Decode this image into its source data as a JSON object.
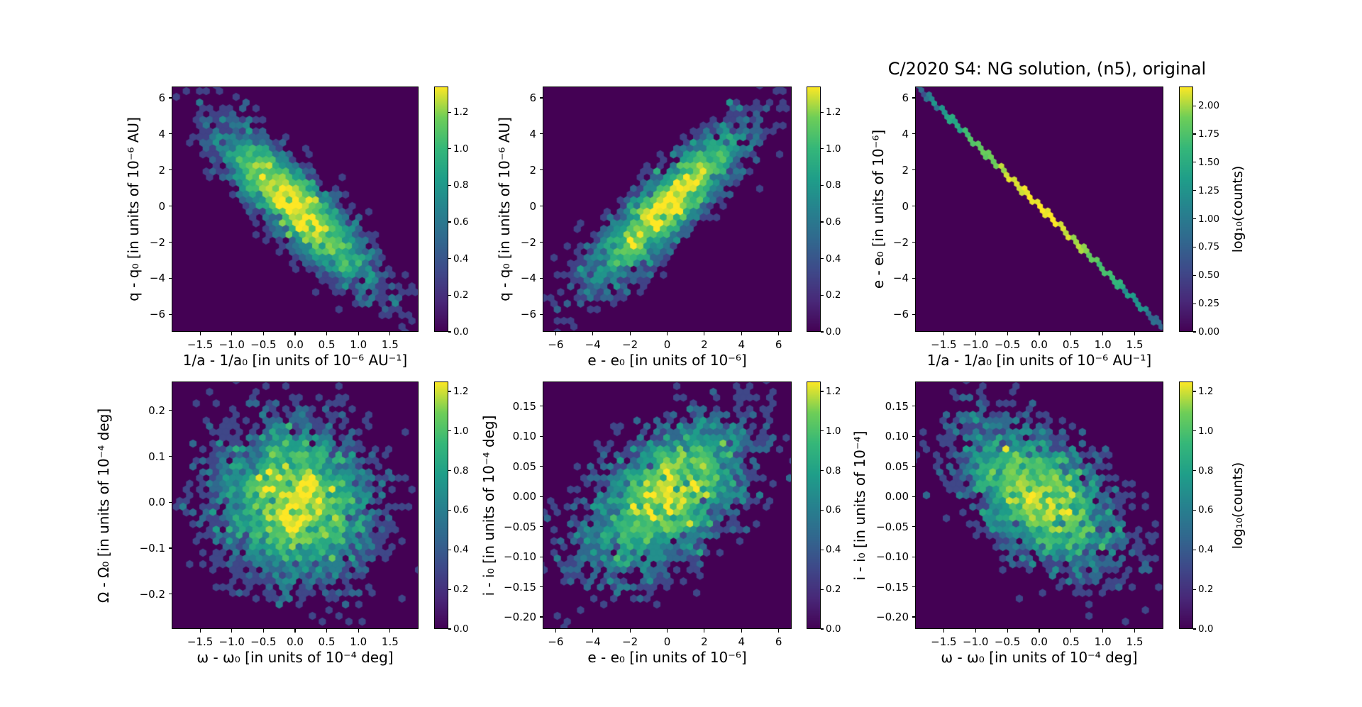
{
  "figure": {
    "title": "C/2020 S4: NG solution, (n5), original",
    "background": "#ffffff",
    "panel_background": "#440154",
    "colormap": "viridis",
    "colormap_stops": [
      [
        0.0,
        "#440154"
      ],
      [
        0.125,
        "#482878"
      ],
      [
        0.25,
        "#3e4989"
      ],
      [
        0.375,
        "#31688e"
      ],
      [
        0.5,
        "#26828e"
      ],
      [
        0.625,
        "#1f9e89"
      ],
      [
        0.75,
        "#35b779"
      ],
      [
        0.875,
        "#6ece58"
      ],
      [
        1.0,
        "#fde725"
      ]
    ],
    "text_color": "#000000"
  },
  "chart_data": [
    {
      "id": "q-vs-inverse-a",
      "type": "hexbin",
      "xlabel": "1/a - 1/a₀ [in units of 10⁻⁶ AU⁻¹]",
      "ylabel": "q - q₀ [in units of 10⁻⁶ AU]",
      "xlim": [
        -1.95,
        1.95
      ],
      "ylim": [
        -6.97,
        6.63
      ],
      "xticks": {
        "values": [
          -1.5,
          -1.0,
          -0.5,
          0.0,
          0.5,
          1.0,
          1.5
        ],
        "labels": [
          "−1.5",
          "−1.0",
          "−0.5",
          "0.0",
          "0.5",
          "1.0",
          "1.5"
        ]
      },
      "yticks": {
        "values": [
          6,
          4,
          2,
          0,
          -2,
          -4,
          -6
        ],
        "labels": [
          "6",
          "4",
          "2",
          "0",
          "−2",
          "−4",
          "−6"
        ]
      },
      "colorbar": {
        "vmax": 1.34,
        "tick_values": [
          0.0,
          0.2,
          0.4,
          0.6,
          0.8,
          1.0,
          1.2
        ],
        "tick_labels": [
          "0.0",
          "0.2",
          "0.4",
          "0.6",
          "0.8",
          "1.0",
          "1.2"
        ],
        "label": null
      },
      "distribution": {
        "kind": "gaussian",
        "center": [
          0,
          0
        ],
        "sigma_x": 0.62,
        "sigma_y": 2.2,
        "rho": -0.87,
        "peak_count": 22,
        "hex_radius_px": 5.4,
        "seed": 101
      }
    },
    {
      "id": "q-vs-e",
      "type": "hexbin",
      "xlabel": "e - e₀ [in units of 10⁻⁶]",
      "ylabel": "q - q₀ [in units of 10⁻⁶ AU]",
      "xlim": [
        -6.7,
        6.7
      ],
      "ylim": [
        -6.97,
        6.63
      ],
      "xticks": {
        "values": [
          -6,
          -4,
          -2,
          0,
          2,
          4,
          6
        ],
        "labels": [
          "−6",
          "−4",
          "−2",
          "0",
          "2",
          "4",
          "6"
        ]
      },
      "yticks": {
        "values": [
          6,
          4,
          2,
          0,
          -2,
          -4,
          -6
        ],
        "labels": [
          "6",
          "4",
          "2",
          "0",
          "−2",
          "−4",
          "−6"
        ]
      },
      "colorbar": {
        "vmax": 1.34,
        "tick_values": [
          0.0,
          0.2,
          0.4,
          0.6,
          0.8,
          1.0,
          1.2
        ],
        "tick_labels": [
          "0.0",
          "0.2",
          "0.4",
          "0.6",
          "0.8",
          "1.0",
          "1.2"
        ],
        "label": null
      },
      "distribution": {
        "kind": "gaussian",
        "center": [
          0,
          0
        ],
        "sigma_x": 2.15,
        "sigma_y": 2.2,
        "rho": 0.87,
        "peak_count": 22,
        "hex_radius_px": 5.4,
        "seed": 202
      }
    },
    {
      "id": "e-vs-inverse-a",
      "type": "hexbin",
      "xlabel": "1/a - 1/a₀ [in units of 10⁻⁶ AU⁻¹]",
      "ylabel": "e - e₀ [in units of 10⁻⁶]",
      "xlim": [
        -1.95,
        1.95
      ],
      "ylim": [
        -6.97,
        6.63
      ],
      "xticks": {
        "values": [
          -1.5,
          -1.0,
          -0.5,
          0.0,
          0.5,
          1.0,
          1.5
        ],
        "labels": [
          "−1.5",
          "−1.0",
          "−0.5",
          "0.0",
          "0.5",
          "1.0",
          "1.5"
        ]
      },
      "yticks": {
        "values": [
          6,
          4,
          2,
          0,
          -2,
          -4,
          -6
        ],
        "labels": [
          "6",
          "4",
          "2",
          "0",
          "−2",
          "−4",
          "−6"
        ]
      },
      "colorbar": {
        "vmax": 2.17,
        "tick_values": [
          0.0,
          0.25,
          0.5,
          0.75,
          1.0,
          1.25,
          1.5,
          1.75,
          2.0
        ],
        "tick_labels": [
          "0.00",
          "0.25",
          "0.50",
          "0.75",
          "1.00",
          "1.25",
          "1.50",
          "1.75",
          "2.00"
        ],
        "label": "log₁₀(counts)"
      },
      "distribution": {
        "kind": "line",
        "x_from": -1.93,
        "y_from": 6.7,
        "x_to": 1.93,
        "y_to": -6.7,
        "sigma_t": 0.72,
        "peak_count": 145,
        "hex_radius_px": 4.2,
        "seed": 303
      }
    },
    {
      "id": "Omega-vs-omega",
      "type": "hexbin",
      "xlabel": "ω - ω₀ [in units of 10⁻⁴ deg]",
      "ylabel": "Ω - Ω₀ [in units of 10⁻⁴ deg]",
      "xlim": [
        -1.95,
        1.95
      ],
      "ylim": [
        -0.276,
        0.263
      ],
      "xticks": {
        "values": [
          -1.5,
          -1.0,
          -0.5,
          0.0,
          0.5,
          1.0,
          1.5
        ],
        "labels": [
          "−1.5",
          "−1.0",
          "−0.5",
          "0.0",
          "0.5",
          "1.0",
          "1.5"
        ]
      },
      "yticks": {
        "values": [
          0.2,
          0.1,
          0.0,
          -0.1,
          -0.2
        ],
        "labels": [
          "0.2",
          "0.1",
          "0.0",
          "−0.1",
          "−0.2"
        ]
      },
      "colorbar": {
        "vmax": 1.25,
        "tick_values": [
          0.0,
          0.2,
          0.4,
          0.6,
          0.8,
          1.0,
          1.2
        ],
        "tick_labels": [
          "0.0",
          "0.2",
          "0.4",
          "0.6",
          "0.8",
          "1.0",
          "1.2"
        ],
        "label": null
      },
      "distribution": {
        "kind": "gaussian",
        "center": [
          0,
          0
        ],
        "sigma_x": 0.6,
        "sigma_y": 0.085,
        "rho": -0.08,
        "peak_count": 15,
        "hex_radius_px": 5.4,
        "seed": 404
      }
    },
    {
      "id": "i-vs-e",
      "type": "hexbin",
      "xlabel": "e - e₀ [in units of 10⁻⁶]",
      "ylabel": "i - i₀ [in units of 10⁻⁴ deg]",
      "xlim": [
        -6.7,
        6.7
      ],
      "ylim": [
        -0.22,
        0.191
      ],
      "xticks": {
        "values": [
          -6,
          -4,
          -2,
          0,
          2,
          4,
          6
        ],
        "labels": [
          "−6",
          "−4",
          "−2",
          "0",
          "2",
          "4",
          "6"
        ]
      },
      "yticks": {
        "values": [
          0.15,
          0.1,
          0.05,
          0.0,
          -0.05,
          -0.1,
          -0.15,
          -0.2
        ],
        "labels": [
          "0.15",
          "0.10",
          "0.05",
          "0.00",
          "−0.05",
          "−0.10",
          "−0.15",
          "−0.20"
        ]
      },
      "colorbar": {
        "vmax": 1.25,
        "tick_values": [
          0.0,
          0.2,
          0.4,
          0.6,
          0.8,
          1.0,
          1.2
        ],
        "tick_labels": [
          "0.0",
          "0.2",
          "0.4",
          "0.6",
          "0.8",
          "1.0",
          "1.2"
        ],
        "label": null
      },
      "distribution": {
        "kind": "gaussian",
        "center": [
          0,
          0
        ],
        "sigma_x": 2.1,
        "sigma_y": 0.062,
        "rho": 0.5,
        "peak_count": 15,
        "hex_radius_px": 5.4,
        "seed": 505
      }
    },
    {
      "id": "i-vs-omega",
      "type": "hexbin",
      "xlabel": "ω - ω₀ [in units of 10⁻⁴ deg]",
      "ylabel": "i - i₀ [in units of 10⁻⁴]",
      "xlim": [
        -1.95,
        1.95
      ],
      "ylim": [
        -0.22,
        0.191
      ],
      "xticks": {
        "values": [
          -1.5,
          -1.0,
          -0.5,
          0.0,
          0.5,
          1.0,
          1.5
        ],
        "labels": [
          "−1.5",
          "−1.0",
          "−0.5",
          "0.0",
          "0.5",
          "1.0",
          "1.5"
        ]
      },
      "yticks": {
        "values": [
          0.15,
          0.1,
          0.05,
          0.0,
          -0.05,
          -0.1,
          -0.15,
          -0.2
        ],
        "labels": [
          "0.15",
          "0.10",
          "0.05",
          "0.00",
          "−0.05",
          "−0.10",
          "−0.15",
          "−0.20"
        ]
      },
      "colorbar": {
        "vmax": 1.25,
        "tick_values": [
          0.0,
          0.2,
          0.4,
          0.6,
          0.8,
          1.0,
          1.2
        ],
        "tick_labels": [
          "0.0",
          "0.2",
          "0.4",
          "0.6",
          "0.8",
          "1.0",
          "1.2"
        ],
        "label": "log₁₀(counts)"
      },
      "distribution": {
        "kind": "gaussian",
        "center": [
          0,
          0
        ],
        "sigma_x": 0.6,
        "sigma_y": 0.06,
        "rho": -0.5,
        "peak_count": 15,
        "hex_radius_px": 5.4,
        "seed": 606
      }
    }
  ]
}
